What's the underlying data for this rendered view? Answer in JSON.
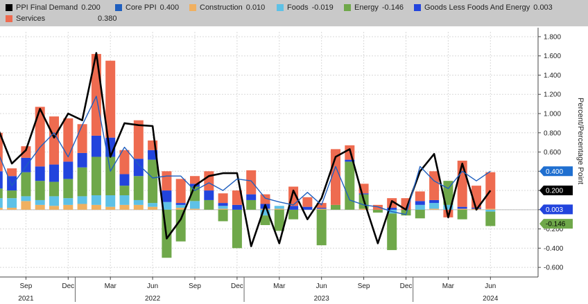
{
  "chart_data": {
    "type": "bar",
    "subtype": "stacked bar with line overlays",
    "ylabel": "Percent/Percentage Point",
    "ylim": [
      -0.7,
      1.85
    ],
    "y_ticks": [
      1.8,
      1.6,
      1.4,
      1.2,
      1.0,
      0.8,
      0.6,
      0.4,
      0.2,
      0.0,
      -0.2,
      -0.4,
      -0.6
    ],
    "y_tick_labels": [
      "1.800",
      "1.600",
      "1.400",
      "1.200",
      "1.000",
      "0.800",
      "0.600",
      "0.400",
      "0.200",
      "0.000",
      "-0.200",
      "-0.400",
      "-0.600"
    ],
    "x_month_labels": [
      "Sep",
      "Dec",
      "Mar",
      "Jun",
      "Sep",
      "Dec",
      "Mar",
      "Jun",
      "Sep",
      "Dec",
      "Mar",
      "Jun"
    ],
    "x_month_label_index": [
      2,
      5,
      8,
      11,
      14,
      17,
      20,
      23,
      26,
      29,
      32,
      35
    ],
    "x_year_labels": [
      "2021",
      "2022",
      "2023",
      "2024"
    ],
    "x_year_label_index": [
      2,
      11,
      23,
      35
    ],
    "grid": true,
    "legend_position": "top",
    "legend": [
      {
        "name": "PPI Final Demand",
        "value": "0.200",
        "color": "#000000"
      },
      {
        "name": "Core PPI",
        "value": "0.400",
        "color": "#1f5fbf"
      },
      {
        "name": "Construction",
        "value": "0.010",
        "color": "#f0b060"
      },
      {
        "name": "Foods",
        "value": "-0.019",
        "color": "#5ec1e6"
      },
      {
        "name": "Energy",
        "value": "-0.146",
        "color": "#6fa84a"
      },
      {
        "name": "Goods Less Foods And Energy",
        "value": "0.003",
        "color": "#2244dd"
      },
      {
        "name": "Services",
        "value": "0.380",
        "color": "#ee6b50"
      }
    ],
    "end_tags": [
      {
        "value": 0.4,
        "label": "0.400",
        "bg": "#1f6fd0",
        "fg": "#ffffff"
      },
      {
        "value": 0.2,
        "label": "0.200",
        "bg": "#000000",
        "fg": "#ffffff"
      },
      {
        "value": 0.003,
        "label": "0.003",
        "bg": "#2244dd",
        "fg": "#ffffff"
      },
      {
        "value": -0.146,
        "label": "-0.146",
        "bg": "#6fa84a",
        "fg": "#000000"
      }
    ],
    "months": [
      "2021-07",
      "2021-08",
      "2021-09",
      "2021-10",
      "2021-11",
      "2021-12",
      "2022-01",
      "2022-02",
      "2022-03",
      "2022-04",
      "2022-05",
      "2022-06",
      "2022-07",
      "2022-08",
      "2022-09",
      "2022-10",
      "2022-11",
      "2022-12",
      "2023-01",
      "2023-02",
      "2023-03",
      "2023-04",
      "2023-05",
      "2023-06",
      "2023-07",
      "2023-08",
      "2023-09",
      "2023-10",
      "2023-11",
      "2023-12",
      "2024-01",
      "2024-02",
      "2024-03",
      "2024-04",
      "2024-05",
      "2024-06"
    ],
    "bar_series": [
      {
        "name": "Construction",
        "color": "#f0b060",
        "values": [
          0.02,
          0.02,
          0.09,
          0.05,
          0.04,
          0.05,
          0.06,
          0.05,
          0.03,
          0.05,
          0.05,
          0.03,
          0.0,
          0.02,
          0.01,
          0.0,
          0.01,
          0.0,
          0.0,
          0.01,
          0.01,
          0.0,
          0.0,
          0.01,
          0.0,
          0.0,
          0.01,
          0.0,
          0.0,
          0.0,
          0.0,
          0.01,
          0.0,
          0.01,
          0.01,
          0.01
        ]
      },
      {
        "name": "Foods",
        "color": "#5ec1e6",
        "values": [
          0.1,
          0.1,
          0.05,
          0.05,
          0.1,
          0.07,
          0.08,
          0.1,
          0.12,
          0.1,
          0.05,
          0.04,
          0.08,
          0.03,
          0.08,
          0.0,
          0.03,
          0.0,
          0.0,
          -0.06,
          0.03,
          0.0,
          0.0,
          0.0,
          0.0,
          0.0,
          0.0,
          0.0,
          -0.04,
          0.0,
          0.05,
          0.06,
          0.05,
          0.0,
          0.0,
          -0.02
        ]
      },
      {
        "name": "Energy",
        "color": "#6fa84a",
        "values": [
          0.1,
          0.08,
          0.25,
          0.2,
          0.15,
          0.2,
          0.3,
          0.4,
          0.4,
          0.1,
          0.25,
          0.45,
          -0.5,
          -0.33,
          0.15,
          0.1,
          -0.12,
          -0.4,
          0.1,
          -0.1,
          -0.22,
          -0.1,
          0.0,
          -0.37,
          0.05,
          0.5,
          0.15,
          -0.03,
          -0.38,
          -0.06,
          -0.09,
          0.0,
          0.25,
          -0.1,
          0.0,
          -0.15
        ]
      },
      {
        "name": "Goods Less Foods And Energy",
        "color": "#2244dd",
        "values": [
          0.18,
          0.15,
          0.15,
          0.15,
          0.18,
          0.18,
          0.15,
          0.22,
          0.2,
          0.12,
          0.18,
          0.1,
          0.12,
          0.02,
          0.03,
          0.1,
          0.03,
          0.05,
          0.06,
          0.05,
          0.0,
          0.04,
          0.03,
          0.01,
          0.0,
          0.02,
          0.01,
          0.0,
          0.02,
          0.0,
          0.04,
          0.03,
          0.0,
          0.02,
          0.01,
          0.0
        ]
      },
      {
        "name": "Services",
        "color": "#ee6b50",
        "values": [
          0.4,
          0.08,
          0.12,
          0.62,
          0.5,
          0.45,
          0.3,
          0.85,
          0.8,
          0.25,
          0.4,
          0.1,
          0.2,
          0.25,
          0.08,
          0.2,
          0.1,
          0.15,
          0.25,
          0.1,
          0.0,
          0.2,
          0.1,
          0.05,
          0.58,
          0.15,
          0.1,
          0.05,
          0.1,
          0.12,
          0.1,
          0.3,
          -0.08,
          0.48,
          0.23,
          0.38
        ]
      }
    ],
    "line_series": [
      {
        "name": "PPI Final Demand",
        "color": "#000000",
        "width": 2.6,
        "values": [
          0.85,
          0.48,
          0.62,
          1.05,
          0.75,
          1.0,
          0.93,
          1.63,
          0.55,
          0.9,
          0.88,
          0.87,
          -0.3,
          -0.1,
          0.25,
          0.35,
          0.38,
          0.38,
          -0.38,
          0.05,
          -0.35,
          0.2,
          -0.1,
          0.12,
          0.55,
          0.63,
          0.1,
          -0.35,
          0.09,
          0.0,
          0.4,
          0.58,
          -0.08,
          0.48,
          0.0,
          0.2
        ]
      },
      {
        "name": "Core PPI",
        "color": "#1f5fbf",
        "width": 1.4,
        "values": [
          0.6,
          0.25,
          0.45,
          0.65,
          0.8,
          0.55,
          0.88,
          1.18,
          0.4,
          0.65,
          0.47,
          0.33,
          0.35,
          0.35,
          0.2,
          0.28,
          0.2,
          0.32,
          0.3,
          0.12,
          0.08,
          0.05,
          0.18,
          0.05,
          0.45,
          0.1,
          0.05,
          0.03,
          -0.02,
          -0.05,
          0.45,
          0.3,
          0.22,
          0.4,
          0.3,
          0.4
        ]
      }
    ]
  }
}
